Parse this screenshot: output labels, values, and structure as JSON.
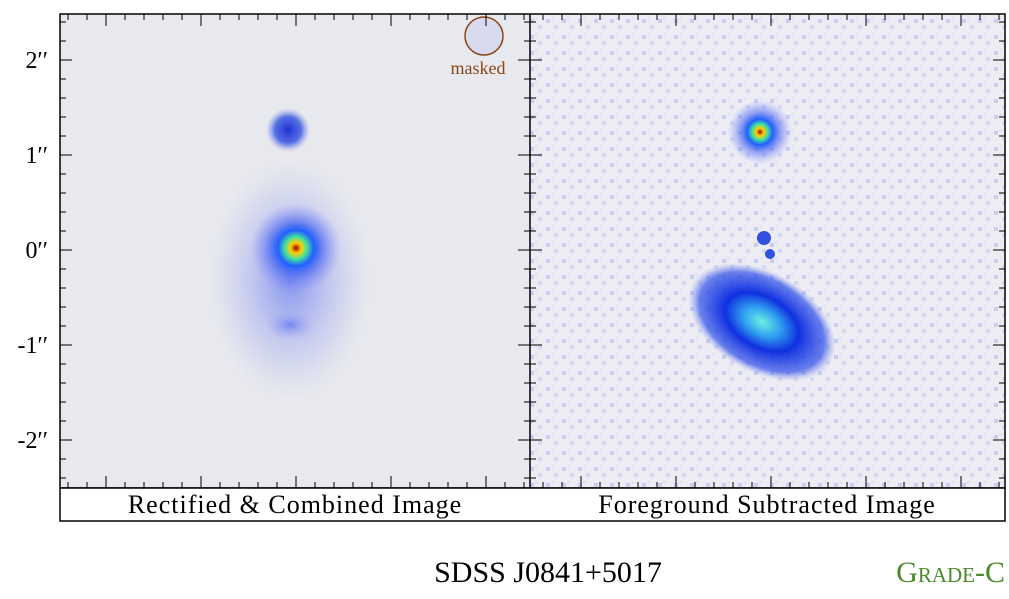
{
  "panels": [
    {
      "caption": "Rectified & Combined Image"
    },
    {
      "caption": "Foreground Subtracted Image"
    }
  ],
  "axis": {
    "ticks": [
      "2′′",
      "1′′",
      "0′′",
      "-1′′",
      "-2′′"
    ]
  },
  "mask_label": "masked",
  "object_name": "SDSS J0841+5017",
  "grade": "Grade-C"
}
